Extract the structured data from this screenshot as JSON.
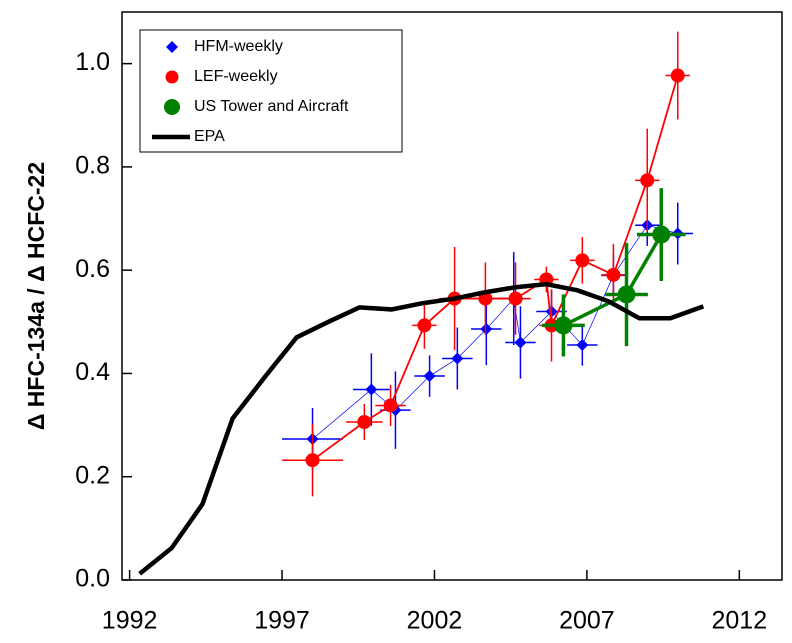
{
  "chart_data": {
    "type": "scatter",
    "y_label": "Δ HFC-134a / Δ HCFC-22",
    "xlim": [
      1991.75,
      2013.4
    ],
    "xticks": [
      1992,
      1997,
      2002,
      2007,
      2012
    ],
    "ylim": [
      0,
      1.1
    ],
    "yticks": [
      {
        "value": 0,
        "label": "0.0"
      },
      {
        "value": 0.2,
        "label": "0.2"
      },
      {
        "value": 0.4,
        "label": "0.4"
      },
      {
        "value": 0.6,
        "label": "0.6"
      },
      {
        "value": 0.8,
        "label": "0.8"
      },
      {
        "value": 1.0,
        "label": "1.0"
      }
    ],
    "legend": "upper left",
    "series": [
      {
        "name": "HFM-weekly",
        "color": "#0000ff",
        "marker": "diamond",
        "line": "thin",
        "x": [
          1998.0,
          1999.93,
          2000.72,
          2001.84,
          2002.75,
          2003.7,
          2004.6,
          2004.82,
          2005.84,
          2006.85,
          2007.87,
          2008.98,
          2009.98
        ],
        "values": [
          0.273,
          0.369,
          0.329,
          0.395,
          0.429,
          0.486,
          0.545,
          0.46,
          0.52,
          0.455,
          0.59,
          0.687,
          0.671
        ],
        "xerr": [
          1.0,
          0.6,
          0.5,
          0.5,
          0.5,
          0.5,
          0.4,
          0.5,
          0.5,
          0.5,
          0.4,
          0.4,
          0.5
        ],
        "yerr": [
          0.06,
          0.07,
          0.075,
          0.04,
          0.06,
          0.07,
          0.09,
          0.07,
          0.04,
          0.04,
          0.04,
          0.04,
          0.06
        ]
      },
      {
        "name": "LEF-weekly",
        "color": "#ff0000",
        "marker": "circle",
        "line": "normal",
        "x": [
          1998.0,
          1999.7,
          2000.56,
          2001.67,
          2002.66,
          2003.67,
          2004.66,
          2005.67,
          2005.84,
          2006.85,
          2007.87,
          2008.98,
          2009.98
        ],
        "values": [
          0.232,
          0.306,
          0.338,
          0.493,
          0.545,
          0.545,
          0.545,
          0.582,
          0.493,
          0.619,
          0.591,
          0.774,
          0.977
        ],
        "xerr": [
          1.0,
          0.6,
          0.5,
          0.4,
          0.5,
          0.5,
          0.5,
          0.4,
          0.4,
          0.4,
          0.4,
          0.4,
          0.4
        ],
        "yerr": [
          0.07,
          0.035,
          0.04,
          0.045,
          0.1,
          0.07,
          0.07,
          0.025,
          0.07,
          0.045,
          0.06,
          0.1,
          0.085
        ]
      },
      {
        "name": "US Tower and Aircraft",
        "color": "#008000",
        "marker": "bigcircle",
        "line": "thick",
        "x": [
          2006.23,
          2008.3,
          2009.44
        ],
        "values": [
          0.493,
          0.553,
          0.669
        ],
        "xerr": [
          0.7,
          0.7,
          0.8
        ],
        "yerr": [
          0.06,
          0.1,
          0.09
        ]
      },
      {
        "name": "EPA",
        "color": "#000000",
        "marker": "none",
        "line": "bold",
        "x": [
          1992.33,
          1993.38,
          1994.39,
          1995.38,
          1996.46,
          1997.48,
          1998.49,
          1999.54,
          2000.59,
          2001.61,
          2002.66,
          2003.64,
          2004.66,
          2005.67,
          2006.69,
          2007.7,
          2008.72,
          2009.74,
          2010.82
        ],
        "values": [
          0.012,
          0.062,
          0.147,
          0.313,
          0.395,
          0.47,
          0.499,
          0.528,
          0.524,
          0.536,
          0.545,
          0.557,
          0.567,
          0.573,
          0.561,
          0.54,
          0.507,
          0.507,
          0.53
        ]
      }
    ]
  }
}
